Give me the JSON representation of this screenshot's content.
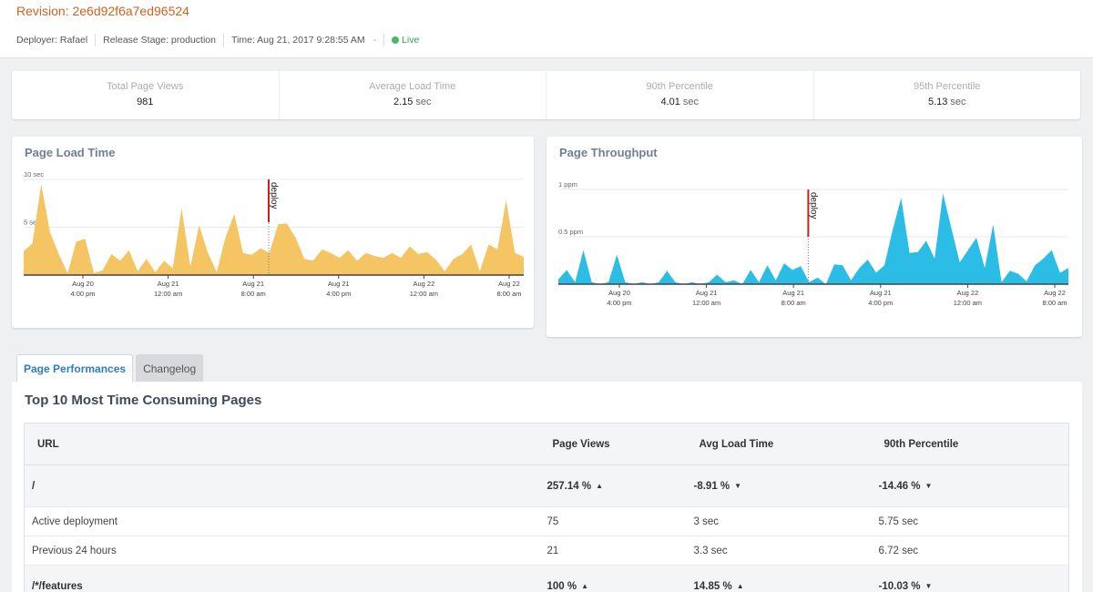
{
  "header": {
    "revision": "Revision: 2e6d92f6a7ed96524",
    "deployer": "Deployer: Rafael",
    "stage": "Release Stage: production",
    "time": "Time: Aug 21, 2017 9:28:55 AM",
    "dash": "-",
    "live": "Live"
  },
  "stats": [
    {
      "label": "Total Page Views",
      "value": "981",
      "unit": ""
    },
    {
      "label": "Average Load Time",
      "value": "2.15",
      "unit": "sec"
    },
    {
      "label": "90th Percentile",
      "value": "4.01",
      "unit": "sec"
    },
    {
      "label": "95th Percentile",
      "value": "5.13",
      "unit": "sec"
    }
  ],
  "colors": {
    "load_fill": "#f5c563",
    "throughput_fill": "#2bbde6",
    "deploy": "#cc1f1f"
  },
  "chart_data": [
    {
      "type": "area",
      "title": "Page Load Time",
      "y_ticks": [
        "10 sec",
        "5 sec"
      ],
      "x_ticks": [
        [
          "Aug 20",
          "4:00 pm"
        ],
        [
          "Aug 21",
          "12:00 am"
        ],
        [
          "Aug 21",
          "8:00 am"
        ],
        [
          "Aug 21",
          "4:00 pm"
        ],
        [
          "Aug 22",
          "12:00 am"
        ],
        [
          "Aug 22",
          "8:00 am"
        ]
      ],
      "deploy_label": "deploy",
      "deploy_at": 0.49,
      "ylim": [
        0,
        10
      ],
      "values": [
        2.5,
        3.3,
        9.5,
        4.5,
        2.2,
        0.2,
        3.5,
        3.8,
        0.2,
        0.5,
        2.2,
        1.5,
        2.6,
        0.4,
        1.7,
        0.3,
        1.5,
        0.7,
        7,
        0.9,
        5.2,
        2.3,
        0.3,
        3.9,
        6.4,
        2.3,
        2.1,
        2.8,
        2.3,
        5.3,
        5.4,
        3.9,
        1.7,
        1.5,
        2.7,
        2.3,
        1.8,
        2.6,
        1.5,
        2.3,
        2,
        1.8,
        2.3,
        1.8,
        3,
        2.2,
        2.4,
        1.6,
        0.4,
        1.7,
        2.2,
        3.2,
        0.4,
        3.2,
        2.7,
        7.8,
        2.3,
        1.9
      ]
    },
    {
      "type": "area",
      "title": "Page Throughput",
      "y_ticks": [
        "1 ppm",
        "0.5 ppm"
      ],
      "x_ticks": [
        [
          "Aug 20",
          "4:00 pm"
        ],
        [
          "Aug 21",
          "12:00 am"
        ],
        [
          "Aug 21",
          "8:00 am"
        ],
        [
          "Aug 21",
          "4:00 pm"
        ],
        [
          "Aug 22",
          "12:00 am"
        ],
        [
          "Aug 22",
          "8:00 am"
        ]
      ],
      "deploy_label": "deploy",
      "deploy_at": 0.49,
      "ylim": [
        0,
        1
      ],
      "values": [
        0.05,
        0.15,
        0.02,
        0.36,
        0.02,
        0,
        0.02,
        0.31,
        0.02,
        0,
        0.02,
        0,
        0.02,
        0.14,
        0.02,
        0,
        0.02,
        0,
        0.02,
        0.1,
        0.02,
        0.04,
        0,
        0.15,
        0.02,
        0.2,
        0.04,
        0.22,
        0.15,
        0.19,
        0.02,
        0.07,
        0,
        0.21,
        0.2,
        0.04,
        0.17,
        0.26,
        0.12,
        0.2,
        0.58,
        0.91,
        0.33,
        0.34,
        0.46,
        0.27,
        0.96,
        0.59,
        0.23,
        0.36,
        0.49,
        0.17,
        0.63,
        0.02,
        0.14,
        0.11,
        0.03,
        0.2,
        0.27,
        0.36,
        0.12,
        0.17
      ]
    }
  ],
  "tabs": [
    {
      "label": "Page Performances",
      "active": true
    },
    {
      "label": "Changelog",
      "active": false
    }
  ],
  "panel": {
    "title": "Top 10 Most Time Consuming Pages",
    "columns": [
      "URL",
      "Page Views",
      "Avg Load Time",
      "90th Percentile"
    ],
    "rows": [
      {
        "type": "group",
        "cells": [
          "/",
          "257.14 %",
          "-8.91 %",
          "-14.46 %"
        ],
        "trend": [
          "",
          "up-good",
          "down-good",
          "down-good"
        ]
      },
      {
        "type": "sub",
        "cells": [
          "Active deployment",
          "75",
          "3 sec",
          "5.75 sec"
        ]
      },
      {
        "type": "sub",
        "cells": [
          "Previous 24 hours",
          "21",
          "3.3 sec",
          "6.72 sec"
        ]
      },
      {
        "type": "group",
        "cells": [
          "/*/features",
          "100 %",
          "14.85 %",
          "-10.03 %"
        ],
        "trend": [
          "",
          "up-good",
          "up-bad",
          "down-good"
        ]
      }
    ]
  }
}
